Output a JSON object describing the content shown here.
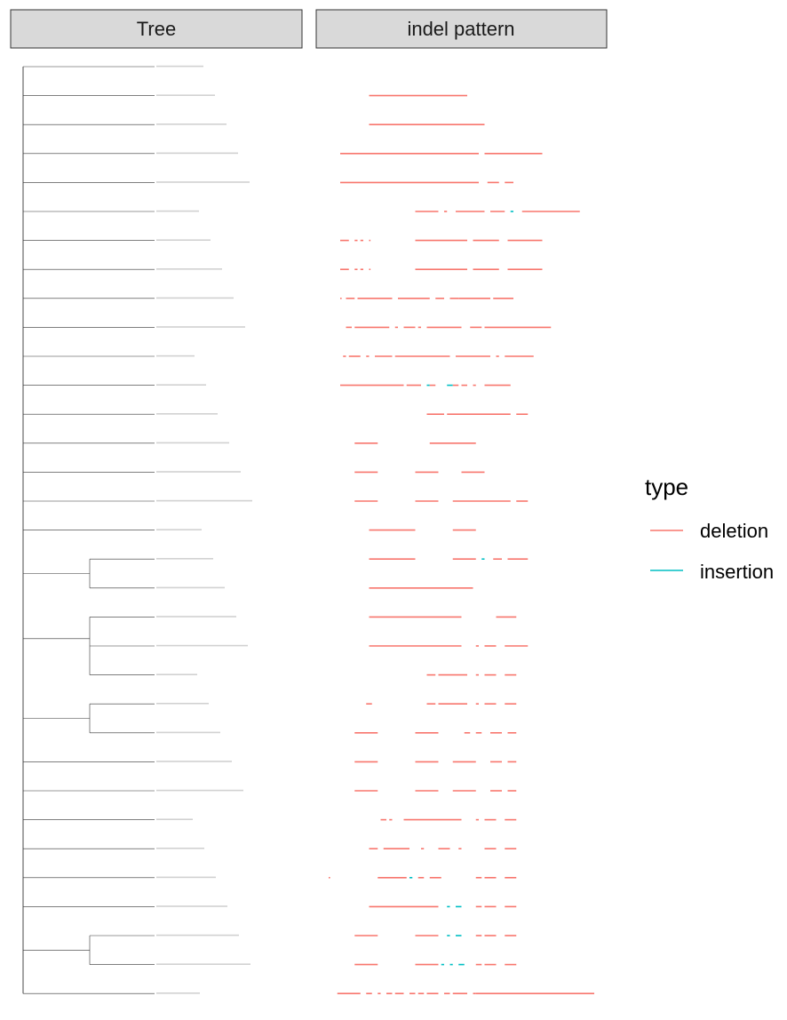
{
  "panels": {
    "left_title": "Tree",
    "right_title": "indel pattern"
  },
  "legend": {
    "title": "type",
    "items": [
      {
        "label": "deletion",
        "color": "#F8766D"
      },
      {
        "label": "insertion",
        "color": "#00BFC4"
      }
    ]
  },
  "chart_data": {
    "type": "phylogenetic-tree-with-segments",
    "panels": [
      "Tree",
      "indel pattern"
    ],
    "tree": {
      "tips": 33,
      "tip_labels": [],
      "clades": [
        {
          "tips": [
            18,
            19
          ]
        },
        {
          "tips": [
            20,
            21,
            22
          ],
          "inner": [
            21,
            22
          ]
        },
        {
          "tips": [
            23,
            24
          ]
        },
        {
          "tips": [
            31,
            32
          ]
        }
      ]
    },
    "indel_x_range": [
      0,
      100
    ],
    "rows": [
      {
        "row": 1,
        "segments": []
      },
      {
        "row": 2,
        "segments": [
          [
            14,
            48,
            "deletion"
          ]
        ]
      },
      {
        "row": 3,
        "segments": [
          [
            14,
            54,
            "deletion"
          ]
        ]
      },
      {
        "row": 4,
        "segments": [
          [
            4,
            52,
            "deletion"
          ],
          [
            54,
            74,
            "deletion"
          ]
        ]
      },
      {
        "row": 5,
        "segments": [
          [
            4,
            52,
            "deletion"
          ],
          [
            55,
            59,
            "deletion"
          ],
          [
            61,
            64,
            "deletion"
          ]
        ]
      },
      {
        "row": 6,
        "segments": [
          [
            30,
            38,
            "deletion"
          ],
          [
            40,
            41,
            "deletion"
          ],
          [
            44,
            54,
            "deletion"
          ],
          [
            56,
            61,
            "deletion"
          ],
          [
            63,
            64,
            "insertion"
          ],
          [
            67,
            87,
            "deletion"
          ]
        ]
      },
      {
        "row": 7,
        "segments": [
          [
            4,
            7,
            "deletion"
          ],
          [
            9,
            10,
            "deletion"
          ],
          [
            11,
            12,
            "deletion"
          ],
          [
            14,
            14.5,
            "deletion"
          ],
          [
            30,
            48,
            "deletion"
          ],
          [
            50,
            59,
            "deletion"
          ],
          [
            62,
            74,
            "deletion"
          ]
        ]
      },
      {
        "row": 8,
        "segments": [
          [
            4,
            7,
            "deletion"
          ],
          [
            9,
            10,
            "deletion"
          ],
          [
            11,
            12,
            "deletion"
          ],
          [
            14,
            14.5,
            "deletion"
          ],
          [
            30,
            48,
            "deletion"
          ],
          [
            50,
            59,
            "deletion"
          ],
          [
            62,
            74,
            "deletion"
          ]
        ]
      },
      {
        "row": 9,
        "segments": [
          [
            4,
            4.5,
            "deletion"
          ],
          [
            6,
            9,
            "deletion"
          ],
          [
            10,
            22,
            "deletion"
          ],
          [
            24,
            35,
            "deletion"
          ],
          [
            37,
            40,
            "deletion"
          ],
          [
            42,
            45,
            "deletion"
          ],
          [
            45,
            56,
            "deletion"
          ],
          [
            57,
            64,
            "deletion"
          ]
        ]
      },
      {
        "row": 10,
        "segments": [
          [
            6,
            8,
            "deletion"
          ],
          [
            9,
            21,
            "deletion"
          ],
          [
            23,
            24,
            "deletion"
          ],
          [
            26,
            30,
            "deletion"
          ],
          [
            31,
            32,
            "deletion"
          ],
          [
            34,
            46,
            "deletion"
          ],
          [
            49,
            53,
            "deletion"
          ],
          [
            54,
            77,
            "deletion"
          ]
        ]
      },
      {
        "row": 11,
        "segments": [
          [
            5,
            6,
            "deletion"
          ],
          [
            7,
            11,
            "deletion"
          ],
          [
            13,
            14,
            "deletion"
          ],
          [
            16,
            22,
            "deletion"
          ],
          [
            23,
            42,
            "deletion"
          ],
          [
            44,
            56,
            "deletion"
          ],
          [
            58,
            59,
            "deletion"
          ],
          [
            61,
            71,
            "deletion"
          ]
        ]
      },
      {
        "row": 12,
        "segments": [
          [
            4,
            26,
            "deletion"
          ],
          [
            27,
            32,
            "deletion"
          ],
          [
            34,
            35,
            "insertion"
          ],
          [
            35,
            37,
            "deletion"
          ],
          [
            41,
            43,
            "insertion"
          ],
          [
            43,
            45,
            "deletion"
          ],
          [
            46,
            48,
            "deletion"
          ],
          [
            50,
            51,
            "deletion"
          ],
          [
            54,
            63,
            "deletion"
          ]
        ]
      },
      {
        "row": 13,
        "segments": [
          [
            34,
            40,
            "deletion"
          ],
          [
            41,
            63,
            "deletion"
          ],
          [
            65,
            69,
            "deletion"
          ]
        ]
      },
      {
        "row": 14,
        "segments": [
          [
            9,
            17,
            "deletion"
          ],
          [
            35,
            51,
            "deletion"
          ]
        ]
      },
      {
        "row": 15,
        "segments": [
          [
            9,
            17,
            "deletion"
          ],
          [
            30,
            38,
            "deletion"
          ],
          [
            46,
            54,
            "deletion"
          ]
        ]
      },
      {
        "row": 16,
        "segments": [
          [
            9,
            17,
            "deletion"
          ],
          [
            30,
            38,
            "deletion"
          ],
          [
            43,
            63,
            "deletion"
          ],
          [
            65,
            69,
            "deletion"
          ]
        ]
      },
      {
        "row": 17,
        "segments": [
          [
            14,
            30,
            "deletion"
          ],
          [
            43,
            51,
            "deletion"
          ]
        ]
      },
      {
        "row": 18,
        "segments": [
          [
            14,
            30,
            "deletion"
          ],
          [
            43,
            51,
            "deletion"
          ],
          [
            53,
            54,
            "insertion"
          ],
          [
            57,
            60,
            "deletion"
          ],
          [
            62,
            69,
            "deletion"
          ]
        ]
      },
      {
        "row": 19,
        "segments": [
          [
            14,
            50,
            "deletion"
          ]
        ]
      },
      {
        "row": 20,
        "segments": [
          [
            14,
            46,
            "deletion"
          ],
          [
            58,
            65,
            "deletion"
          ]
        ]
      },
      {
        "row": 21,
        "segments": [
          [
            14,
            46,
            "deletion"
          ],
          [
            51,
            52,
            "deletion"
          ],
          [
            54,
            58,
            "deletion"
          ],
          [
            61,
            69,
            "deletion"
          ]
        ]
      },
      {
        "row": 22,
        "segments": [
          [
            34,
            37,
            "deletion"
          ],
          [
            38,
            48,
            "deletion"
          ],
          [
            51,
            52,
            "deletion"
          ],
          [
            54,
            58,
            "deletion"
          ],
          [
            61,
            65,
            "deletion"
          ]
        ]
      },
      {
        "row": 23,
        "segments": [
          [
            13,
            15,
            "deletion"
          ],
          [
            34,
            37,
            "deletion"
          ],
          [
            38,
            48,
            "deletion"
          ],
          [
            51,
            52,
            "deletion"
          ],
          [
            54,
            58,
            "deletion"
          ],
          [
            61,
            65,
            "deletion"
          ]
        ]
      },
      {
        "row": 24,
        "segments": [
          [
            9,
            17,
            "deletion"
          ],
          [
            30,
            38,
            "deletion"
          ],
          [
            47,
            49,
            "deletion"
          ],
          [
            51,
            53,
            "deletion"
          ],
          [
            56,
            60,
            "deletion"
          ],
          [
            62,
            65,
            "deletion"
          ]
        ]
      },
      {
        "row": 25,
        "segments": [
          [
            9,
            17,
            "deletion"
          ],
          [
            30,
            38,
            "deletion"
          ],
          [
            43,
            51,
            "deletion"
          ],
          [
            56,
            60,
            "deletion"
          ],
          [
            62,
            65,
            "deletion"
          ]
        ]
      },
      {
        "row": 26,
        "segments": [
          [
            9,
            17,
            "deletion"
          ],
          [
            30,
            38,
            "deletion"
          ],
          [
            43,
            51,
            "deletion"
          ],
          [
            56,
            60,
            "deletion"
          ],
          [
            62,
            65,
            "deletion"
          ]
        ]
      },
      {
        "row": 27,
        "segments": [
          [
            18,
            20,
            "deletion"
          ],
          [
            21,
            22,
            "deletion"
          ],
          [
            26,
            46,
            "deletion"
          ],
          [
            51,
            52,
            "deletion"
          ],
          [
            54,
            58,
            "deletion"
          ],
          [
            61,
            65,
            "deletion"
          ]
        ]
      },
      {
        "row": 28,
        "segments": [
          [
            14,
            17,
            "deletion"
          ],
          [
            19,
            28,
            "deletion"
          ],
          [
            32,
            33,
            "deletion"
          ],
          [
            38,
            42,
            "deletion"
          ],
          [
            45,
            46,
            "deletion"
          ],
          [
            54,
            58,
            "deletion"
          ],
          [
            61,
            65,
            "deletion"
          ]
        ]
      },
      {
        "row": 29,
        "segments": [
          [
            0,
            0.5,
            "deletion"
          ],
          [
            17,
            27,
            "deletion"
          ],
          [
            28,
            29,
            "insertion"
          ],
          [
            31,
            33,
            "deletion"
          ],
          [
            35,
            39,
            "deletion"
          ],
          [
            51,
            53,
            "deletion"
          ],
          [
            54,
            58,
            "deletion"
          ],
          [
            61,
            65,
            "deletion"
          ]
        ]
      },
      {
        "row": 30,
        "segments": [
          [
            14,
            38,
            "deletion"
          ],
          [
            41,
            42,
            "insertion"
          ],
          [
            44,
            46,
            "insertion"
          ],
          [
            51,
            53,
            "deletion"
          ],
          [
            54,
            58,
            "deletion"
          ],
          [
            61,
            65,
            "deletion"
          ]
        ]
      },
      {
        "row": 31,
        "segments": [
          [
            9,
            17,
            "deletion"
          ],
          [
            30,
            38,
            "deletion"
          ],
          [
            41,
            42,
            "insertion"
          ],
          [
            44,
            46,
            "insertion"
          ],
          [
            51,
            53,
            "deletion"
          ],
          [
            54,
            58,
            "deletion"
          ],
          [
            61,
            65,
            "deletion"
          ]
        ]
      },
      {
        "row": 32,
        "segments": [
          [
            9,
            17,
            "deletion"
          ],
          [
            30,
            38,
            "deletion"
          ],
          [
            39,
            40,
            "insertion"
          ],
          [
            42,
            43,
            "insertion"
          ],
          [
            45,
            47,
            "insertion"
          ],
          [
            51,
            53,
            "deletion"
          ],
          [
            54,
            58,
            "deletion"
          ],
          [
            61,
            65,
            "deletion"
          ]
        ]
      },
      {
        "row": 33,
        "segments": [
          [
            3,
            11,
            "deletion"
          ],
          [
            13,
            15,
            "deletion"
          ],
          [
            17,
            18,
            "deletion"
          ],
          [
            20,
            22,
            "deletion"
          ],
          [
            23,
            26,
            "deletion"
          ],
          [
            28,
            30,
            "deletion"
          ],
          [
            31,
            33,
            "deletion"
          ],
          [
            34,
            38,
            "deletion"
          ],
          [
            40,
            42,
            "deletion"
          ],
          [
            43,
            48,
            "deletion"
          ],
          [
            50,
            51,
            "deletion"
          ],
          [
            51,
            92,
            "deletion"
          ]
        ]
      }
    ]
  }
}
